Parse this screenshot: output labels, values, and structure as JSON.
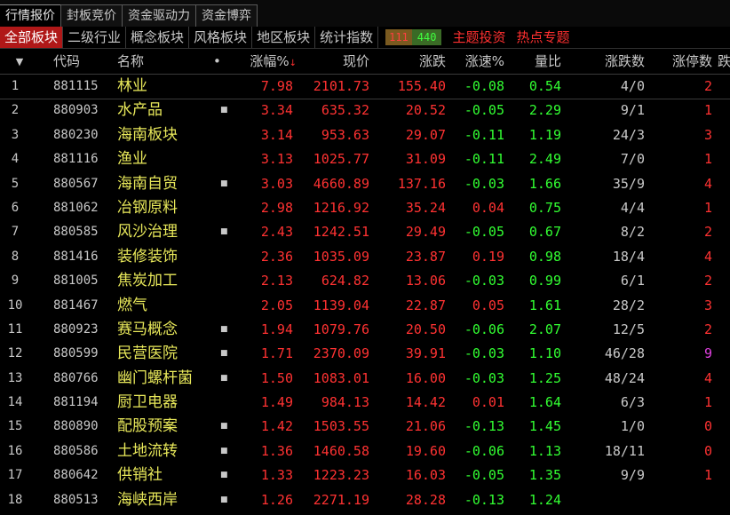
{
  "top_tabs": [
    "行情报价",
    "封板竞价",
    "资金驱动力",
    "资金博弈"
  ],
  "category_tabs": [
    "全部板块",
    "二级行业",
    "概念板块",
    "风格板块",
    "地区板块",
    "统计指数"
  ],
  "up_down_count": {
    "up": "111",
    "down": "440"
  },
  "special_tabs": [
    "主题投资",
    "热点专题"
  ],
  "columns": {
    "sort_marker": "▼",
    "code": "代码",
    "name": "名称",
    "dot": "•",
    "pct": "涨幅%",
    "pct_arrow": "↓",
    "price": "现价",
    "change": "涨跌",
    "speed": "涨速%",
    "volume_ratio": "量比",
    "up_down_count": "涨跌数",
    "limit_up_count": "涨停数",
    "extra": "跌"
  },
  "rows": [
    {
      "idx": "1",
      "code": "881115",
      "name": "林业",
      "dot": "",
      "pct": "7.98",
      "price": "2101.73",
      "change": "155.40",
      "speed": "-0.08",
      "ratio": "0.54",
      "updown": "4/0",
      "limit": "2"
    },
    {
      "idx": "2",
      "code": "880903",
      "name": "水产品",
      "dot": "■",
      "pct": "3.34",
      "price": "635.32",
      "change": "20.52",
      "speed": "-0.05",
      "ratio": "2.29",
      "updown": "9/1",
      "limit": "1"
    },
    {
      "idx": "3",
      "code": "880230",
      "name": "海南板块",
      "dot": "",
      "pct": "3.14",
      "price": "953.63",
      "change": "29.07",
      "speed": "-0.11",
      "ratio": "1.19",
      "updown": "24/3",
      "limit": "3"
    },
    {
      "idx": "4",
      "code": "881116",
      "name": "渔业",
      "dot": "",
      "pct": "3.13",
      "price": "1025.77",
      "change": "31.09",
      "speed": "-0.11",
      "ratio": "2.49",
      "updown": "7/0",
      "limit": "1"
    },
    {
      "idx": "5",
      "code": "880567",
      "name": "海南自贸",
      "dot": "■",
      "pct": "3.03",
      "price": "4660.89",
      "change": "137.16",
      "speed": "-0.03",
      "ratio": "1.66",
      "updown": "35/9",
      "limit": "4"
    },
    {
      "idx": "6",
      "code": "881062",
      "name": "冶钢原料",
      "dot": "",
      "pct": "2.98",
      "price": "1216.92",
      "change": "35.24",
      "speed": "0.04",
      "ratio": "0.75",
      "updown": "4/4",
      "limit": "1"
    },
    {
      "idx": "7",
      "code": "880585",
      "name": "风沙治理",
      "dot": "■",
      "pct": "2.43",
      "price": "1242.51",
      "change": "29.49",
      "speed": "-0.05",
      "ratio": "0.67",
      "updown": "8/2",
      "limit": "2"
    },
    {
      "idx": "8",
      "code": "881416",
      "name": "装修装饰",
      "dot": "",
      "pct": "2.36",
      "price": "1035.09",
      "change": "23.87",
      "speed": "0.19",
      "ratio": "0.98",
      "updown": "18/4",
      "limit": "4"
    },
    {
      "idx": "9",
      "code": "881005",
      "name": "焦炭加工",
      "dot": "",
      "pct": "2.13",
      "price": "624.82",
      "change": "13.06",
      "speed": "-0.03",
      "ratio": "0.99",
      "updown": "6/1",
      "limit": "2"
    },
    {
      "idx": "10",
      "code": "881467",
      "name": "燃气",
      "dot": "",
      "pct": "2.05",
      "price": "1139.04",
      "change": "22.87",
      "speed": "0.05",
      "ratio": "1.61",
      "updown": "28/2",
      "limit": "3"
    },
    {
      "idx": "11",
      "code": "880923",
      "name": "赛马概念",
      "dot": "■",
      "pct": "1.94",
      "price": "1079.76",
      "change": "20.50",
      "speed": "-0.06",
      "ratio": "2.07",
      "updown": "12/5",
      "limit": "2"
    },
    {
      "idx": "12",
      "code": "880599",
      "name": "民营医院",
      "dot": "■",
      "pct": "1.71",
      "price": "2370.09",
      "change": "39.91",
      "speed": "-0.03",
      "ratio": "1.10",
      "updown": "46/28",
      "limit": "9"
    },
    {
      "idx": "13",
      "code": "880766",
      "name": "幽门螺杆菌",
      "dot": "■",
      "pct": "1.50",
      "price": "1083.01",
      "change": "16.00",
      "speed": "-0.03",
      "ratio": "1.25",
      "updown": "48/24",
      "limit": "4"
    },
    {
      "idx": "14",
      "code": "881194",
      "name": "厨卫电器",
      "dot": "",
      "pct": "1.49",
      "price": "984.13",
      "change": "14.42",
      "speed": "0.01",
      "ratio": "1.64",
      "updown": "6/3",
      "limit": "1"
    },
    {
      "idx": "15",
      "code": "880890",
      "name": "配股预案",
      "dot": "■",
      "pct": "1.42",
      "price": "1503.55",
      "change": "21.06",
      "speed": "-0.13",
      "ratio": "1.45",
      "updown": "1/0",
      "limit": "0"
    },
    {
      "idx": "16",
      "code": "880586",
      "name": "土地流转",
      "dot": "■",
      "pct": "1.36",
      "price": "1460.58",
      "change": "19.60",
      "speed": "-0.06",
      "ratio": "1.13",
      "updown": "18/11",
      "limit": "0"
    },
    {
      "idx": "17",
      "code": "880642",
      "name": "供销社",
      "dot": "■",
      "pct": "1.33",
      "price": "1223.23",
      "change": "16.03",
      "speed": "-0.05",
      "ratio": "1.35",
      "updown": "9/9",
      "limit": "1"
    },
    {
      "idx": "18",
      "code": "880513",
      "name": "海峡西岸",
      "dot": "■",
      "pct": "1.26",
      "price": "2271.19",
      "change": "28.28",
      "speed": "-0.13",
      "ratio": "1.24",
      "updown": "",
      "limit": ""
    }
  ],
  "colors": {
    "up": "#ff3232",
    "down": "#32ff32",
    "name": "#e8e85a",
    "active_tab": "#b01818",
    "limit_highlight": "#e040e0"
  }
}
